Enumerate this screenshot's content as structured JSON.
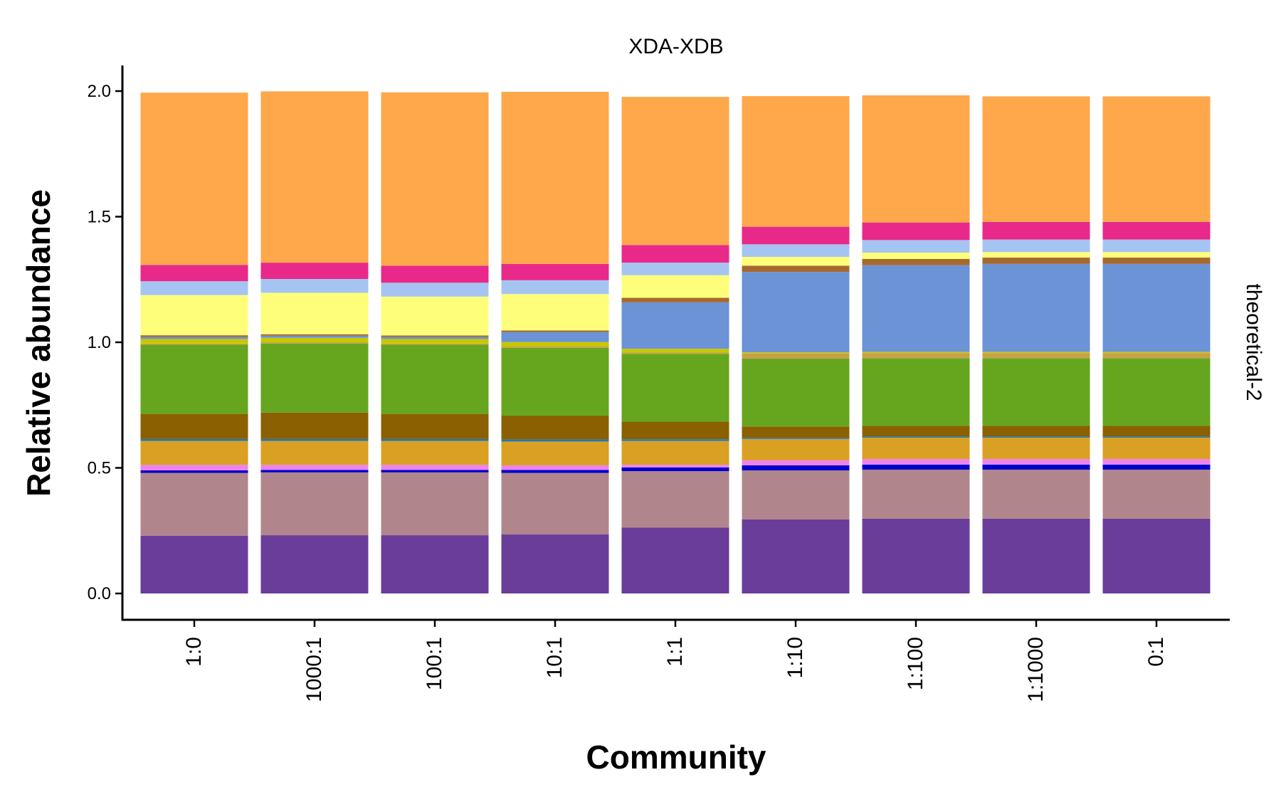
{
  "chart_data": {
    "type": "bar",
    "stacked": true,
    "title": "",
    "facet_top": "XDA-XDB",
    "facet_right": "theoretical-2",
    "xlabel": "Community",
    "ylabel": "Relative abundance",
    "ylim": [
      0,
      2.0
    ],
    "yticks": [
      "0.0",
      "0.5",
      "1.0",
      "1.5",
      "2.0"
    ],
    "ytick_values": [
      0,
      0.5,
      1.0,
      1.5,
      2.0
    ],
    "grid": false,
    "legend": "none",
    "categories": [
      "1:0",
      "1000:1",
      "100:1",
      "10:1",
      "1:1",
      "1:10",
      "1:100",
      "1:1000",
      "0:1"
    ],
    "series": [
      {
        "color": "#6a3d9a",
        "values": [
          0.23,
          0.232,
          0.232,
          0.235,
          0.262,
          0.295,
          0.298,
          0.298,
          0.298
        ]
      },
      {
        "color": "#b0868c",
        "values": [
          0.25,
          0.25,
          0.25,
          0.245,
          0.225,
          0.195,
          0.195,
          0.195,
          0.195
        ]
      },
      {
        "color": "#0000cc",
        "values": [
          0.01,
          0.01,
          0.01,
          0.012,
          0.015,
          0.02,
          0.02,
          0.02,
          0.02
        ]
      },
      {
        "color": "#ee82ee",
        "values": [
          0.022,
          0.02,
          0.02,
          0.018,
          0.01,
          0.02,
          0.022,
          0.022,
          0.022
        ]
      },
      {
        "color": "#daa023",
        "values": [
          0.095,
          0.095,
          0.095,
          0.095,
          0.095,
          0.085,
          0.085,
          0.085,
          0.085
        ]
      },
      {
        "color": "#1f78b4",
        "values": [
          0.008,
          0.008,
          0.008,
          0.008,
          0.007,
          0.005,
          0.005,
          0.005,
          0.005
        ]
      },
      {
        "color": "#8b6000",
        "values": [
          0.1,
          0.105,
          0.1,
          0.095,
          0.07,
          0.045,
          0.042,
          0.042,
          0.042
        ]
      },
      {
        "color": "#66a61e",
        "values": [
          0.275,
          0.275,
          0.275,
          0.27,
          0.27,
          0.27,
          0.27,
          0.27,
          0.27
        ]
      },
      {
        "color": "#c8a04a",
        "values": [
          0.005,
          0.005,
          0.005,
          0.005,
          0.005,
          0.02,
          0.02,
          0.02,
          0.02
        ]
      },
      {
        "color": "#c8c800",
        "values": [
          0.018,
          0.018,
          0.018,
          0.018,
          0.015,
          0.005,
          0.005,
          0.005,
          0.005
        ]
      },
      {
        "color": "#6b93d6",
        "values": [
          0.008,
          0.008,
          0.008,
          0.04,
          0.185,
          0.32,
          0.345,
          0.35,
          0.35
        ]
      },
      {
        "color": "#a6692d",
        "values": [
          0.007,
          0.006,
          0.006,
          0.006,
          0.018,
          0.025,
          0.025,
          0.025,
          0.025
        ]
      },
      {
        "color": "#fffe7a",
        "values": [
          0.16,
          0.165,
          0.155,
          0.145,
          0.09,
          0.035,
          0.025,
          0.022,
          0.022
        ]
      },
      {
        "color": "#a6c4f2",
        "values": [
          0.055,
          0.055,
          0.055,
          0.055,
          0.05,
          0.05,
          0.05,
          0.05,
          0.05
        ]
      },
      {
        "color": "#e8298a",
        "values": [
          0.065,
          0.065,
          0.068,
          0.065,
          0.07,
          0.07,
          0.07,
          0.07,
          0.07
        ]
      },
      {
        "color": "#fea84b",
        "values": [
          0.686,
          0.682,
          0.69,
          0.685,
          0.59,
          0.52,
          0.506,
          0.5,
          0.5
        ]
      }
    ]
  }
}
